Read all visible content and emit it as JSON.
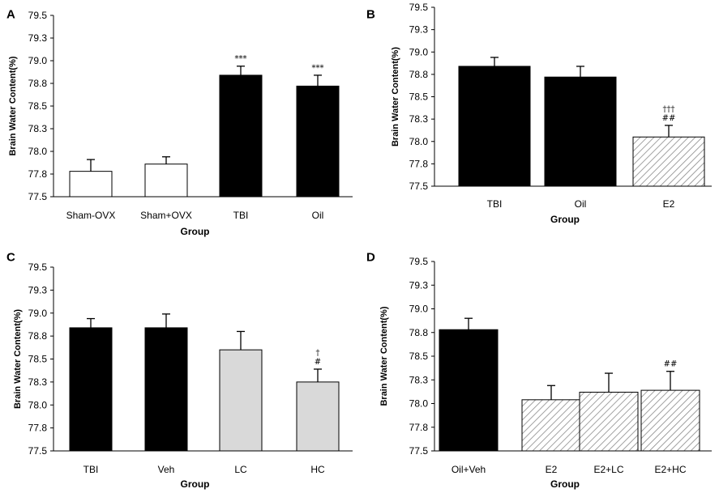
{
  "chart_data": [
    {
      "panel": "A",
      "type": "bar",
      "ylabel": "Brain Water Content(%)",
      "xlabel": "Group",
      "ylim": [
        77.5,
        79.5
      ],
      "yticks": [
        "77.5",
        "77.8",
        "78.0",
        "78.3",
        "78.5",
        "78.8",
        "79.0",
        "79.3",
        "79.5"
      ],
      "categories": [
        "Sham-OVX",
        "Sham+OVX",
        "TBI",
        "Oil"
      ],
      "values": [
        77.78,
        77.86,
        78.84,
        78.72
      ],
      "errors": [
        0.13,
        0.08,
        0.1,
        0.12
      ],
      "fills": [
        "white",
        "white",
        "black",
        "black"
      ],
      "annotations": [
        "",
        "",
        "***",
        "***"
      ]
    },
    {
      "panel": "B",
      "type": "bar",
      "ylabel": "Brain Water Content(%)",
      "xlabel": "Group",
      "ylim": [
        77.5,
        79.5
      ],
      "yticks": [
        "77.5",
        "77.8",
        "78.0",
        "78.3",
        "78.5",
        "78.8",
        "79.0",
        "79.3",
        "79.5"
      ],
      "categories": [
        "TBI",
        "Oil",
        "E2"
      ],
      "values": [
        78.84,
        78.72,
        78.05
      ],
      "errors": [
        0.1,
        0.12,
        0.13
      ],
      "fills": [
        "black",
        "black",
        "hatch"
      ],
      "annotations": [
        "",
        "",
        "†††\n##"
      ]
    },
    {
      "panel": "C",
      "type": "bar",
      "ylabel": "Brain Water Content(%)",
      "xlabel": "Group",
      "ylim": [
        77.5,
        79.5
      ],
      "yticks": [
        "77.5",
        "77.8",
        "78.0",
        "78.3",
        "78.5",
        "78.8",
        "79.0",
        "79.3",
        "79.5"
      ],
      "categories": [
        "TBI",
        "Veh",
        "LC",
        "HC"
      ],
      "values": [
        78.84,
        78.84,
        78.6,
        78.25
      ],
      "errors": [
        0.1,
        0.15,
        0.2,
        0.14
      ],
      "fills": [
        "black",
        "black",
        "gray",
        "gray"
      ],
      "annotations": [
        "",
        "",
        "",
        "†\n#"
      ]
    },
    {
      "panel": "D",
      "type": "bar",
      "ylabel": "Brain Water Content(%)",
      "xlabel": "Group",
      "ylim": [
        77.5,
        79.5
      ],
      "yticks": [
        "77.5",
        "77.8",
        "78.0",
        "78.3",
        "78.5",
        "78.8",
        "79.0",
        "79.3",
        "79.5"
      ],
      "categories": [
        "Oil+Veh",
        "E2",
        "E2+LC",
        "E2+HC"
      ],
      "values": [
        78.78,
        78.04,
        78.12,
        78.14
      ],
      "errors": [
        0.12,
        0.15,
        0.2,
        0.2
      ],
      "fills": [
        "black",
        "hatch",
        "hatch",
        "hatch"
      ],
      "annotations": [
        "",
        "",
        "",
        "##"
      ]
    }
  ]
}
